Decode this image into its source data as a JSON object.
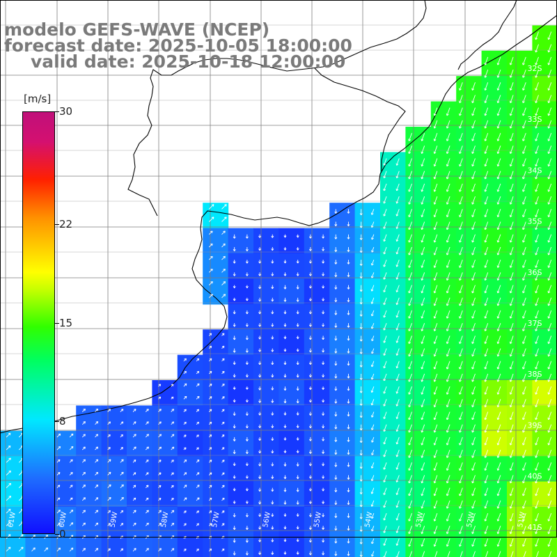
{
  "header": {
    "model": "modelo GEFS-WAVE (NCEP)",
    "forecast_date": "forecast date: 2025-10-05 18:00:00",
    "valid_date": "valid date: 2025-10-18 12:00:00"
  },
  "colorbar": {
    "unit": "[m/s]",
    "ticks": [
      {
        "label": "30",
        "value": 30
      },
      {
        "label": "22",
        "value": 22
      },
      {
        "label": "15",
        "value": 15
      },
      {
        "label": "8",
        "value": 8
      },
      {
        "label": "0",
        "value": 0
      }
    ],
    "colors": [
      "#1010ff",
      "#1e6cff",
      "#00e8ff",
      "#00ff60",
      "#c8ff00",
      "#ffff00",
      "#ff9000",
      "#ff2000",
      "#c0107a"
    ]
  },
  "map": {
    "lat_labels": [
      "32S",
      "33S",
      "34S",
      "35S",
      "36S",
      "37S",
      "38S",
      "39S",
      "40S",
      "41S"
    ],
    "lon_labels": [
      "61W",
      "60W",
      "59W",
      "58W",
      "57W",
      "56W",
      "55W",
      "54W",
      "53W",
      "52W",
      "51W"
    ],
    "lat_range": [
      -41.5,
      -30.9
    ],
    "lon_range": [
      -61.1,
      -50.0
    ]
  }
}
